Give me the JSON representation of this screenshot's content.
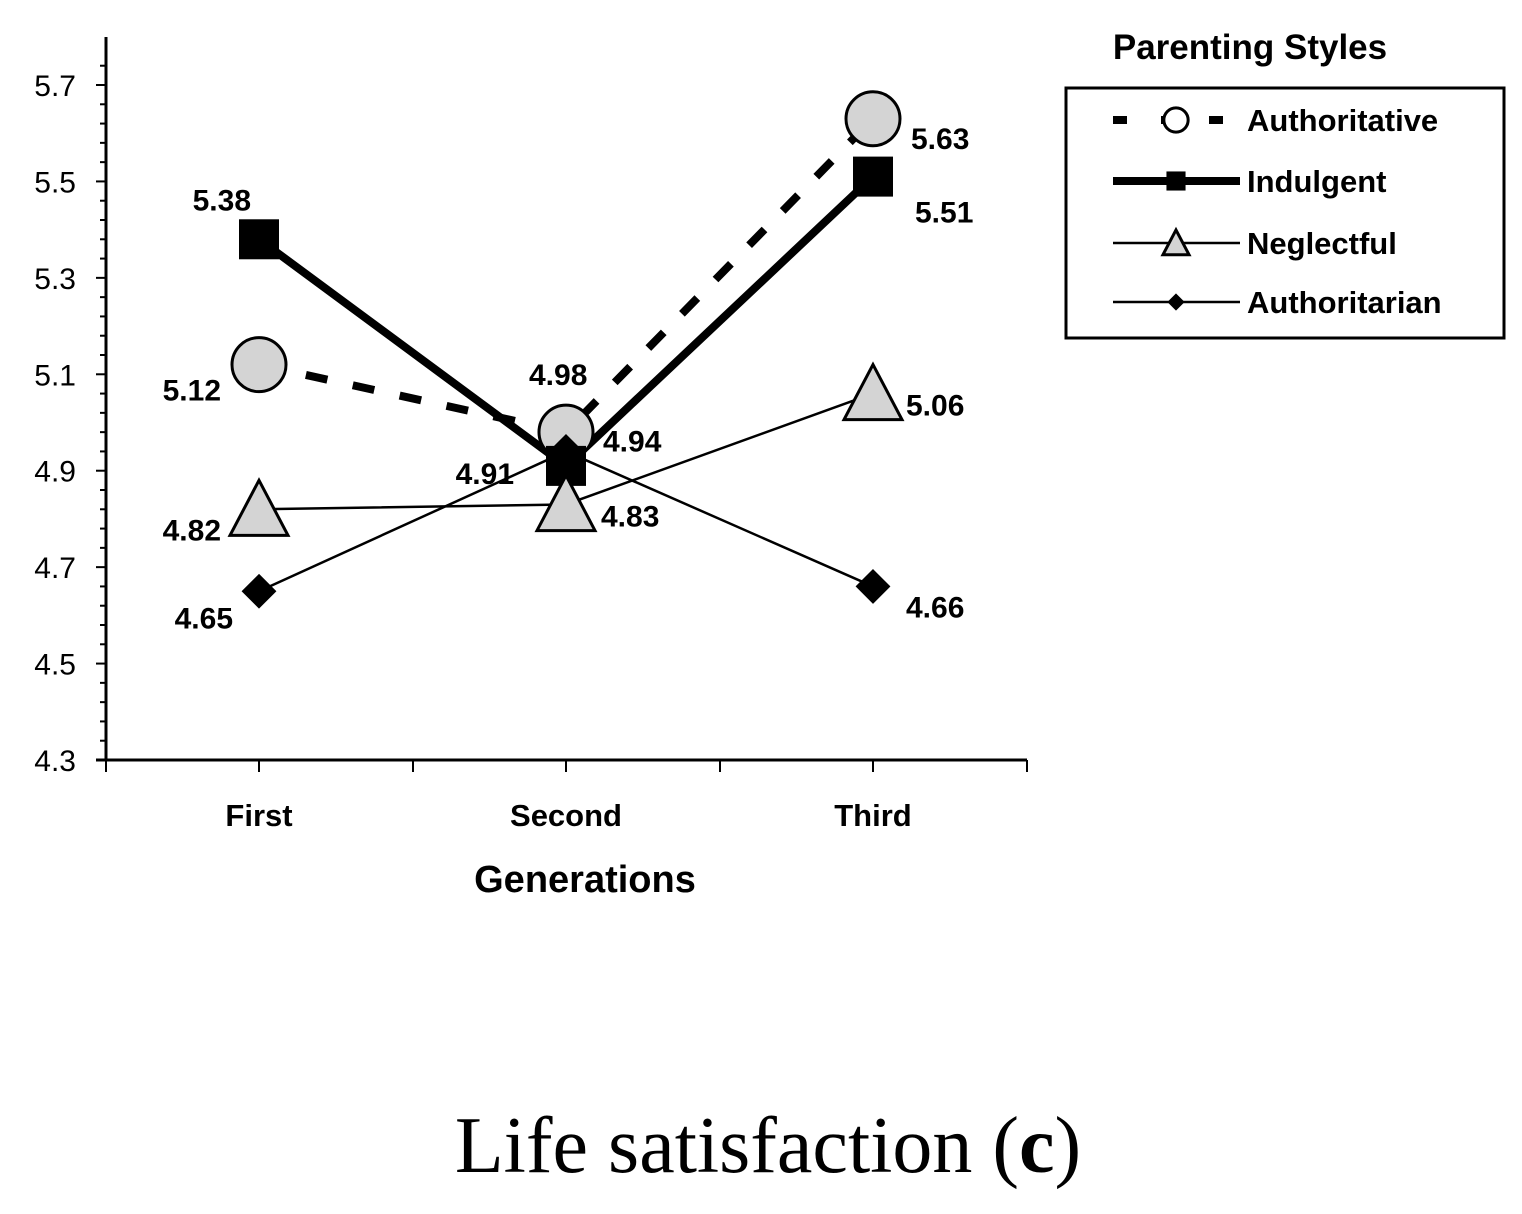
{
  "chart_data": {
    "type": "line",
    "categories": [
      "First",
      "Second",
      "Third"
    ],
    "xlabel": "Generations",
    "ylabel": "",
    "ylim": [
      4.3,
      5.8
    ],
    "yticks": [
      "4.3",
      "4.5",
      "4.7",
      "4.9",
      "5.1",
      "5.3",
      "5.5",
      "5.7"
    ],
    "legend_title": "Parenting Styles",
    "legend_position": "top-right",
    "grid": false,
    "series": [
      {
        "name": "Authoritative",
        "values": [
          5.12,
          4.98,
          5.63
        ],
        "labels": [
          "5.12",
          "4.98",
          "5.63"
        ],
        "marker": "circle",
        "line": "dashed-thick",
        "color": "#000000",
        "marker_fill": "#d4d4d4"
      },
      {
        "name": "Indulgent",
        "values": [
          5.38,
          4.91,
          5.51
        ],
        "labels": [
          "5.38",
          "4.91",
          "5.51"
        ],
        "marker": "square",
        "line": "solid-thick",
        "color": "#000000",
        "marker_fill": "#000000"
      },
      {
        "name": "Neglectful",
        "values": [
          4.82,
          4.83,
          5.06
        ],
        "labels": [
          "4.82",
          "4.83",
          "5.06"
        ],
        "marker": "triangle",
        "line": "solid-thin",
        "color": "#000000",
        "marker_fill": "#d4d4d4"
      },
      {
        "name": "Authoritarian",
        "values": [
          4.65,
          4.94,
          4.66
        ],
        "labels": [
          "4.65",
          "4.94",
          "4.66"
        ],
        "marker": "diamond",
        "line": "solid-thin",
        "color": "#000000",
        "marker_fill": "#000000"
      }
    ]
  },
  "caption": {
    "text": "Life satisfaction (",
    "letter": "c",
    "close": ")"
  }
}
